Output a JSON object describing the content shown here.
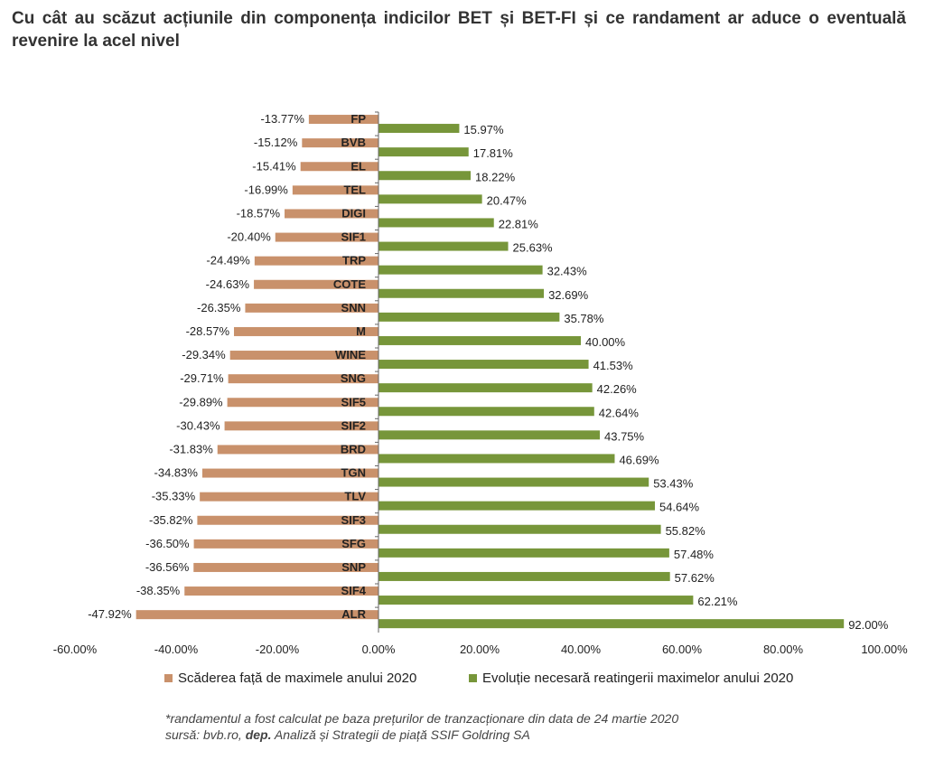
{
  "title": "Cu cât au scăzut acțiunile din componența indicilor BET și BET-FI și ce randament ar aduce o eventuală revenire la acel nivel",
  "chart_data": {
    "type": "bar",
    "orientation": "horizontal",
    "categories": [
      "FP",
      "BVB",
      "EL",
      "TEL",
      "DIGI",
      "SIF1",
      "TRP",
      "COTE",
      "SNN",
      "M",
      "WINE",
      "SNG",
      "SIF5",
      "SIF2",
      "BRD",
      "TGN",
      "TLV",
      "SIF3",
      "SFG",
      "SNP",
      "SIF4",
      "ALR"
    ],
    "series": [
      {
        "name": "Scăderea față de maximele anului 2020",
        "color": "#c9916b",
        "values": [
          -13.77,
          -15.12,
          -15.41,
          -16.99,
          -18.57,
          -20.4,
          -24.49,
          -24.63,
          -26.35,
          -28.57,
          -29.34,
          -29.71,
          -29.89,
          -30.43,
          -31.83,
          -34.83,
          -35.33,
          -35.82,
          -36.5,
          -36.56,
          -38.35,
          -47.92
        ],
        "labels": [
          "-13.77%",
          "-15.12%",
          "-15.41%",
          "-16.99%",
          "-18.57%",
          "-20.40%",
          "-24.49%",
          "-24.63%",
          "-26.35%",
          "-28.57%",
          "-29.34%",
          "-29.71%",
          "-29.89%",
          "-30.43%",
          "-31.83%",
          "-34.83%",
          "-35.33%",
          "-35.82%",
          "-36.50%",
          "-36.56%",
          "-38.35%",
          "-47.92%"
        ]
      },
      {
        "name": "Evoluție necesară reatingerii maximelor anului 2020",
        "color": "#77963a",
        "values": [
          15.97,
          17.81,
          18.22,
          20.47,
          22.81,
          25.63,
          32.43,
          32.69,
          35.78,
          40.0,
          41.53,
          42.26,
          42.64,
          43.75,
          46.69,
          53.43,
          54.64,
          55.82,
          57.48,
          57.62,
          62.21,
          92.0
        ],
        "labels": [
          "15.97%",
          "17.81%",
          "18.22%",
          "20.47%",
          "22.81%",
          "25.63%",
          "32.43%",
          "32.69%",
          "35.78%",
          "40.00%",
          "41.53%",
          "42.26%",
          "42.64%",
          "43.75%",
          "46.69%",
          "53.43%",
          "54.64%",
          "55.82%",
          "57.48%",
          "57.62%",
          "62.21%",
          "92.00%"
        ]
      }
    ],
    "xlim": [
      -60,
      100
    ],
    "x_ticks": [
      -60,
      -40,
      -20,
      0,
      20,
      40,
      60,
      80,
      100
    ],
    "x_tick_labels": [
      "-60.00%",
      "-40.00%",
      "-20.00%",
      "0.00%",
      "20.00%",
      "40.00%",
      "60.00%",
      "80.00%",
      "100.00%"
    ],
    "grid": false,
    "legend_position": "bottom"
  },
  "footnote": "*randamentul a fost calculat pe baza prețurilor de tranzacționare din data de 24 martie 2020",
  "source": {
    "prefix": "sursă: bvb.ro, ",
    "bold": "dep.",
    "suffix": " Analiză și Strategii de piață SSIF Goldring SA"
  }
}
